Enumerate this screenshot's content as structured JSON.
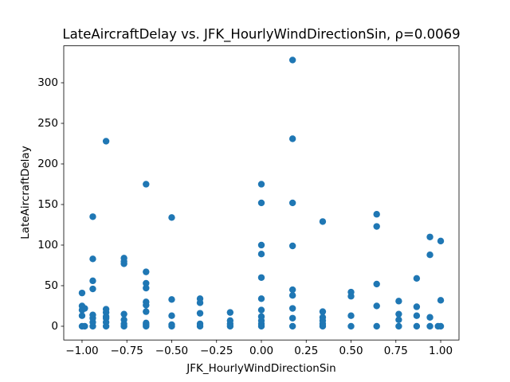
{
  "chart_data": {
    "type": "scatter",
    "title": "LateAircraftDelay vs. JFK_HourlyWindDirectionSin, ρ=0.0069",
    "x_label": "JFK_HourlyWindDirectionSin",
    "y_label": "LateAircraftDelay",
    "color": "#1f77b4",
    "xlim": [
      -1.102,
      1.102
    ],
    "ylim": [
      -16.9,
      345.5
    ],
    "xticks": [
      {
        "value": -1,
        "label": "−1.00"
      },
      {
        "value": -0.75,
        "label": "−0.75"
      },
      {
        "value": -0.5,
        "label": "−0.50"
      },
      {
        "value": -0.25,
        "label": "−0.25"
      },
      {
        "value": 0,
        "label": "0.00"
      },
      {
        "value": 0.25,
        "label": "0.25"
      },
      {
        "value": 0.5,
        "label": "0.50"
      },
      {
        "value": 0.75,
        "label": "0.75"
      },
      {
        "value": 1,
        "label": "1.00"
      }
    ],
    "yticks": [
      0,
      50,
      100,
      150,
      200,
      250,
      300
    ],
    "x": [
      -1,
      -1,
      -1,
      -1,
      -1,
      -0.985,
      -0.985,
      -0.94,
      -0.94,
      -0.94,
      -0.94,
      -0.94,
      -0.94,
      -0.94,
      -0.94,
      -0.866,
      -0.866,
      -0.866,
      -0.866,
      -0.866,
      -0.866,
      -0.866,
      -0.766,
      -0.766,
      -0.766,
      -0.766,
      -0.766,
      -0.766,
      -0.766,
      -0.643,
      -0.643,
      -0.643,
      -0.643,
      -0.643,
      -0.643,
      -0.643,
      -0.643,
      -0.643,
      -0.643,
      -0.5,
      -0.5,
      -0.5,
      -0.5,
      -0.5,
      -0.342,
      -0.342,
      -0.342,
      -0.342,
      -0.342,
      -0.174,
      -0.174,
      -0.174,
      -0.174,
      0,
      0,
      0,
      0,
      0,
      0,
      0,
      0,
      0,
      0,
      0,
      0.174,
      0.174,
      0.174,
      0.174,
      0.174,
      0.174,
      0.174,
      0.174,
      0.174,
      0.342,
      0.342,
      0.342,
      0.342,
      0.342,
      0.342,
      0.5,
      0.5,
      0.5,
      0.5,
      0.643,
      0.643,
      0.643,
      0.643,
      0.643,
      0.766,
      0.766,
      0.766,
      0.766,
      0.866,
      0.866,
      0.866,
      0.866,
      0.94,
      0.94,
      0.94,
      0.94,
      0.985,
      1,
      1,
      1
    ],
    "y": [
      0,
      13,
      20,
      25,
      41,
      0,
      22,
      0,
      5,
      10,
      14,
      46,
      56,
      83,
      135,
      0,
      5,
      10,
      12,
      17,
      21,
      228,
      0,
      3,
      8,
      15,
      77,
      80,
      84,
      0,
      2,
      4,
      18,
      26,
      30,
      47,
      53,
      67,
      175,
      0,
      2,
      13,
      33,
      134,
      0,
      3,
      16,
      29,
      34,
      0,
      3,
      7,
      17,
      0,
      3,
      7,
      12,
      20,
      34,
      60,
      89,
      100,
      152,
      175,
      0,
      10,
      22,
      38,
      45,
      99,
      152,
      231,
      328,
      0,
      3,
      7,
      11,
      18,
      129,
      0,
      13,
      37,
      42,
      0,
      25,
      52,
      123,
      138,
      0,
      8,
      15,
      31,
      0,
      13,
      24,
      59,
      0,
      11,
      88,
      110,
      0,
      0,
      32,
      105
    ]
  }
}
